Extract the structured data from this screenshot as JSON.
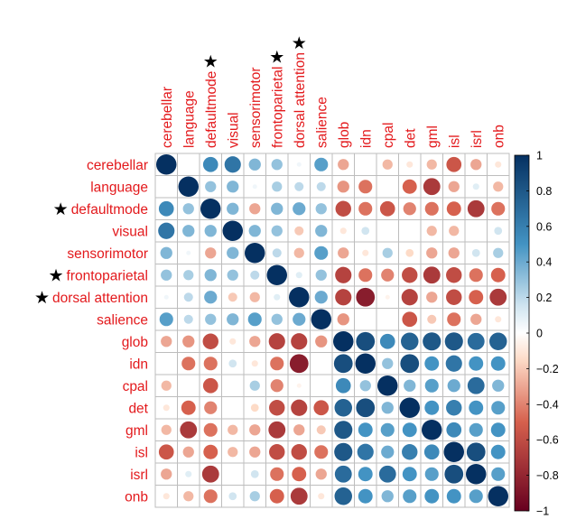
{
  "chart_data": {
    "type": "heatmap",
    "subtype": "correlation-circle-matrix",
    "title": "",
    "variables": [
      "cerebellar",
      "language",
      "defaultmode",
      "visual",
      "sensorimotor",
      "frontoparietal",
      "dorsal attention",
      "salience",
      "glob",
      "idn",
      "cpal",
      "det",
      "gml",
      "isl",
      "isrl",
      "onb"
    ],
    "starred": [
      "defaultmode",
      "frontoparietal",
      "dorsal attention"
    ],
    "star_symbol": "★",
    "matrix": [
      [
        1,
        0,
        0.55,
        0.65,
        0.35,
        0.3,
        0.05,
        0.45,
        -0.3,
        0,
        -0.25,
        -0.1,
        -0.25,
        -0.55,
        -0.3,
        -0.1
      ],
      [
        0,
        1,
        0.3,
        0.35,
        0.05,
        0.25,
        0.2,
        0.2,
        -0.35,
        -0.45,
        0,
        -0.5,
        -0.7,
        -0.3,
        0.1,
        -0.25
      ],
      [
        0.55,
        0.3,
        1,
        0.35,
        -0.3,
        0.35,
        0.4,
        0.3,
        -0.6,
        -0.45,
        -0.55,
        -0.4,
        -0.45,
        -0.5,
        -0.7,
        -0.45
      ],
      [
        0.65,
        0.35,
        0.35,
        1,
        0.35,
        0.3,
        -0.2,
        0.35,
        -0.1,
        0.15,
        0,
        0,
        -0.25,
        -0.25,
        0,
        0.15
      ],
      [
        0.35,
        0.05,
        -0.3,
        0.35,
        1,
        0.2,
        -0.25,
        0.45,
        -0.3,
        -0.1,
        0.25,
        -0.15,
        -0.3,
        -0.3,
        0.15,
        0.25
      ],
      [
        0.3,
        0.25,
        0.35,
        0.3,
        0.2,
        1,
        0.1,
        0.3,
        -0.65,
        -0.45,
        -0.4,
        -0.6,
        -0.7,
        -0.6,
        -0.45,
        -0.5
      ],
      [
        0.05,
        0.2,
        0.4,
        -0.2,
        -0.25,
        0.1,
        1,
        0.4,
        -0.65,
        -0.85,
        -0.05,
        -0.65,
        -0.3,
        -0.6,
        -0.5,
        -0.7
      ],
      [
        0.45,
        0.2,
        0.3,
        0.35,
        0.45,
        0.3,
        0.4,
        1,
        -0.35,
        0,
        0,
        -0.55,
        -0.2,
        -0.45,
        -0.3,
        -0.1
      ],
      [
        -0.3,
        -0.35,
        -0.6,
        -0.1,
        -0.3,
        -0.65,
        -0.65,
        -0.35,
        1,
        0.85,
        0.55,
        0.75,
        0.8,
        0.8,
        0.7,
        0.75
      ],
      [
        0,
        -0.45,
        -0.45,
        0.15,
        -0.1,
        -0.45,
        -0.85,
        0,
        0.85,
        1,
        0.3,
        0.85,
        0.5,
        0.65,
        0.5,
        0.5
      ],
      [
        -0.25,
        0,
        -0.55,
        0,
        0.25,
        -0.4,
        -0.05,
        0,
        0.55,
        0.3,
        1,
        0.35,
        0.45,
        0.4,
        0.7,
        0.35
      ],
      [
        -0.1,
        -0.5,
        -0.4,
        0,
        -0.15,
        -0.6,
        -0.65,
        -0.55,
        0.75,
        0.85,
        0.35,
        1,
        0.5,
        0.6,
        0.5,
        0.45
      ],
      [
        -0.25,
        -0.7,
        -0.45,
        -0.25,
        -0.3,
        -0.7,
        -0.3,
        -0.2,
        0.8,
        0.5,
        0.45,
        0.5,
        1,
        0.55,
        0.45,
        0.5
      ],
      [
        -0.55,
        -0.3,
        -0.5,
        -0.25,
        -0.3,
        -0.6,
        -0.6,
        -0.45,
        0.8,
        0.65,
        0.4,
        0.6,
        0.55,
        1,
        0.85,
        0.5
      ],
      [
        -0.3,
        0.1,
        -0.7,
        0,
        0.15,
        -0.45,
        -0.5,
        -0.3,
        0.7,
        0.5,
        0.7,
        0.5,
        0.45,
        0.85,
        1,
        0.45
      ],
      [
        -0.1,
        -0.25,
        -0.45,
        0.15,
        0.25,
        -0.5,
        -0.7,
        -0.1,
        0.75,
        0.5,
        0.35,
        0.45,
        0.5,
        0.5,
        0.45,
        1
      ]
    ],
    "colorbar": {
      "range": [
        -1,
        1
      ],
      "ticks": [
        1,
        0.8,
        0.6,
        0.4,
        0.2,
        0,
        -0.2,
        -0.4,
        -0.6,
        -0.8,
        -1
      ],
      "tick_labels": [
        "1",
        "0.8",
        "0.6",
        "0.4",
        "0.2",
        "0",
        "−0.2",
        "−0.4",
        "−0.6",
        "−0.8",
        "−1"
      ],
      "colors": {
        "neg_strong": "#67001f",
        "neg_mid": "#d6604d",
        "neg_light": "#fddbc7",
        "zero": "#ffffff",
        "pos_light": "#d1e5f0",
        "pos_mid": "#4393c3",
        "pos_strong": "#053061"
      }
    },
    "label_color": "#e3191c",
    "grid_color": "#bdbdbd"
  }
}
